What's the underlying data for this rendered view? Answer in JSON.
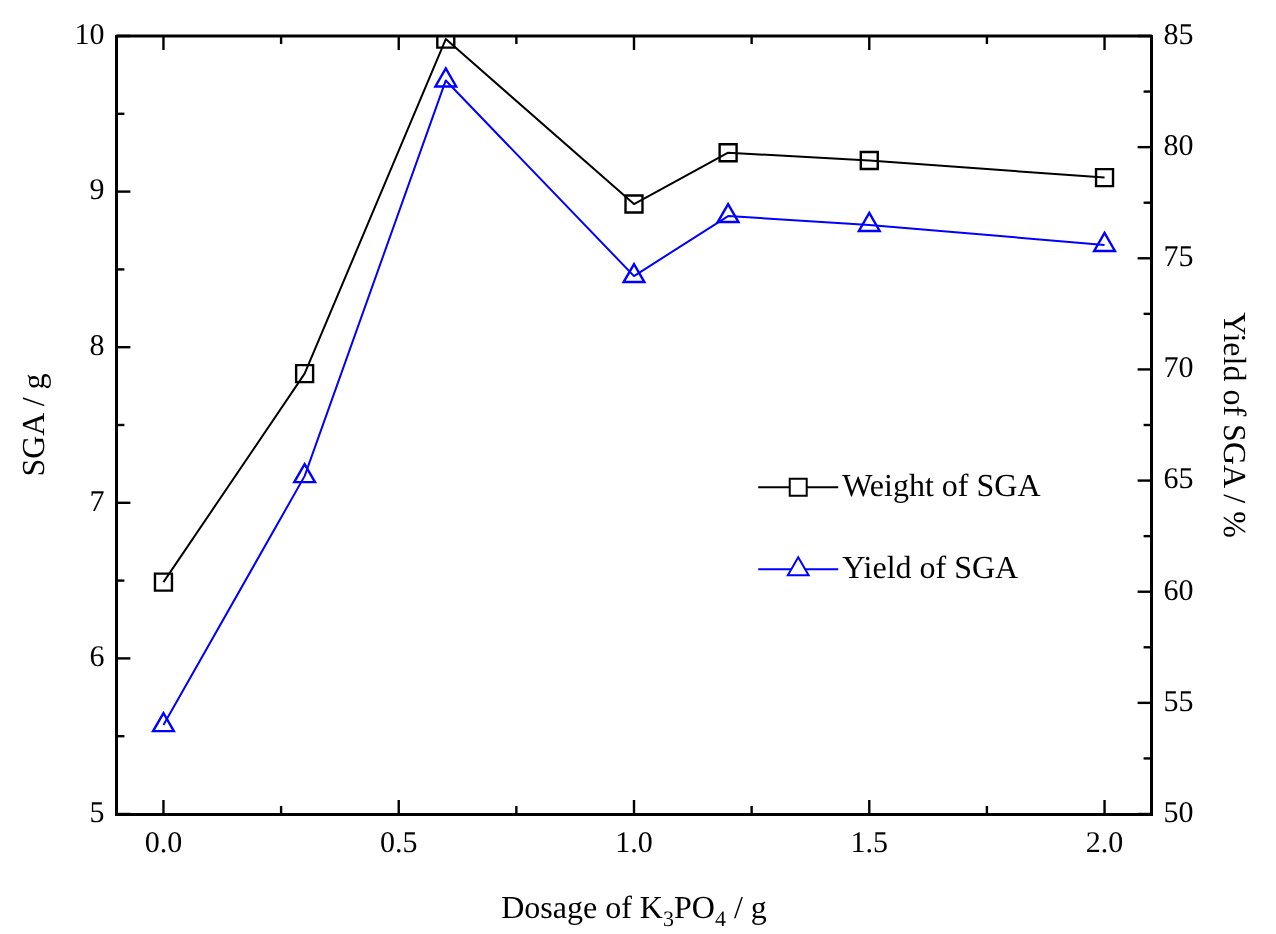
{
  "chart_data": {
    "type": "line",
    "xlabel": "Dosage of K$_{3}$PO$_{4}$ / g",
    "ylabel": "SGA / g",
    "y2label": "Yield of SGA / %",
    "x": [
      0.0,
      0.3,
      0.6,
      1.0,
      1.2,
      1.5,
      2.0
    ],
    "series": [
      {
        "name": "Weight of SGA",
        "color": "#000000",
        "marker": "square",
        "values": [
          6.49,
          7.83,
          9.98,
          8.92,
          9.25,
          9.2,
          9.09
        ]
      },
      {
        "name": "Yield of SGA",
        "color": "#0000ff",
        "marker": "triangle",
        "axis": "y2",
        "values": [
          54.0,
          65.2,
          83.0,
          74.2,
          76.9,
          76.5,
          75.6
        ]
      }
    ],
    "xlim": [
      -0.1,
      2.1
    ],
    "xticks": [
      {
        "value": 0,
        "label": "0.0"
      },
      {
        "value": 0.25,
        "label": null
      },
      {
        "value": 0.5,
        "label": "0.5"
      },
      {
        "value": 0.75,
        "label": null
      },
      {
        "value": 1,
        "label": "1.0"
      },
      {
        "value": 1.25,
        "label": null
      },
      {
        "value": 1.5,
        "label": "1.5"
      },
      {
        "value": 1.75,
        "label": null
      },
      {
        "value": 2,
        "label": "2.0"
      }
    ],
    "ylim": [
      5,
      10
    ],
    "yticks": [
      5,
      {
        "value": 5.5,
        "label": null
      },
      6,
      {
        "value": 6.5,
        "label": null
      },
      7,
      {
        "value": 7.5,
        "label": null
      },
      8,
      {
        "value": 8.5,
        "label": null
      },
      9,
      {
        "value": 9.5,
        "label": null
      },
      10
    ],
    "y2lim": [
      50,
      85
    ],
    "y2ticks": [
      50,
      {
        "value": 52.5,
        "label": null
      },
      55,
      {
        "value": 57.5,
        "label": null
      },
      60,
      {
        "value": 62.5,
        "label": null
      },
      65,
      {
        "value": 67.5,
        "label": null
      },
      70,
      {
        "value": 72.5,
        "label": null
      },
      75,
      {
        "value": 77.5,
        "label": null
      },
      80,
      {
        "value": 82.5,
        "label": null
      },
      85
    ],
    "grid": false,
    "legend": "right",
    "line_style": "solid"
  }
}
